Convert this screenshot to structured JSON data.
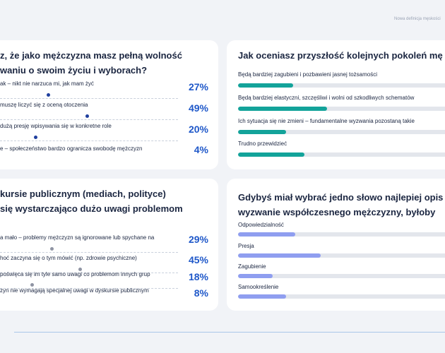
{
  "header": {
    "note": "Nowa definicja męskości"
  },
  "colors": {
    "pct_blue": "#1f58c9",
    "dot_navy": "#1f3f9e",
    "dot_gray": "#8f94a3",
    "teal": "#13a39a",
    "lavender": "#8f9ef0",
    "track": "#e3e6ec"
  },
  "card_a": {
    "question_l1": "z, że jako mężczyzna masz pełną wolność",
    "question_l2": "waniu o swoim życiu i wyborach?",
    "rows": [
      {
        "label": "ak – nikt nie narzuca mi, jak mam żyć",
        "pct": "27%",
        "value": 27
      },
      {
        "label": "muszę liczyć się z oceną otoczenia",
        "pct": "49%",
        "value": 49
      },
      {
        "label": "dużą presję wpisywania się w konkretne role",
        "pct": "20%",
        "value": 20
      },
      {
        "label": "e – społeczeństwo bardzo ogranicza swobodę mężczyzn",
        "pct": "4%",
        "value": 4
      }
    ]
  },
  "card_b": {
    "question": "Jak oceniasz przyszłość kolejnych pokoleń mę",
    "rows": [
      {
        "label": "Będą bardziej zagubieni i pozbawieni jasnej tożsamości",
        "value": 24
      },
      {
        "label": "Będą bardziej elastyczni, szczęśliwi i wolni od szkodliwych schematów",
        "value": 39
      },
      {
        "label": "Ich sytuacja się nie zmieni – fundamentalne wyzwania pozostaną takie",
        "value": 21
      },
      {
        "label": "Trudno przewidzieć",
        "value": 29
      }
    ]
  },
  "card_c": {
    "question_l1": "kursie publicznym (mediach, polityce)",
    "question_l2": "się wystarczająco dużo uwagi problemom",
    "rows": [
      {
        "label": "a mało – problemy mężczyzn są ignorowane lub spychane na",
        "pct": "29%",
        "value": 29
      },
      {
        "label": "hoć zaczyna się o tym mówić (np. zdrowie psychiczne)",
        "pct": "45%",
        "value": 45
      },
      {
        "label": "poświęca się im tyle samo uwagi co problemom innych grup",
        "pct": "18%",
        "value": 18
      },
      {
        "label": "zyn nie wymagają specjalnej uwagi w dyskursie publicznym",
        "pct": "8%",
        "value": 8
      }
    ]
  },
  "card_d": {
    "question_l1": "Gdybyś miał wybrać jedno słowo najlepiej opis",
    "question_l2": "wyzwanie współczesnego mężczyzny, byłoby",
    "rows": [
      {
        "label": "Odpowiedzialność",
        "value": 25
      },
      {
        "label": "Presja",
        "value": 36
      },
      {
        "label": "Zagubienie",
        "value": 15
      },
      {
        "label": "Samookreślenie",
        "value": 21
      }
    ]
  }
}
